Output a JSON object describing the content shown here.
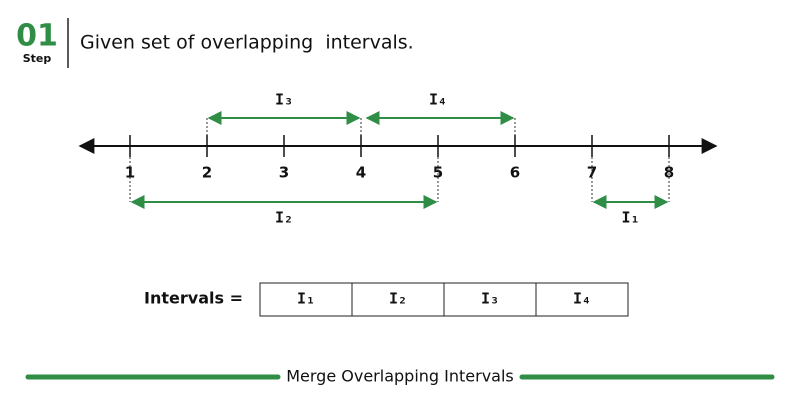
{
  "header": {
    "step_number": "01",
    "step_label": "Step",
    "title": "Given set of overlapping  intervals."
  },
  "number_line": {
    "ticks": [
      1,
      2,
      3,
      4,
      5,
      6,
      7,
      8
    ]
  },
  "intervals": [
    {
      "label": "I₁",
      "start": 7,
      "end": 8
    },
    {
      "label": "I₂",
      "start": 1,
      "end": 5
    },
    {
      "label": "I₃",
      "start": 2,
      "end": 4
    },
    {
      "label": "I₄",
      "start": 4,
      "end": 6
    }
  ],
  "array": {
    "label": "Intervals =",
    "cells": [
      "I₁",
      "I₂",
      "I₃",
      "I₄"
    ]
  },
  "footer": {
    "title": "Merge Overlapping Intervals"
  }
}
